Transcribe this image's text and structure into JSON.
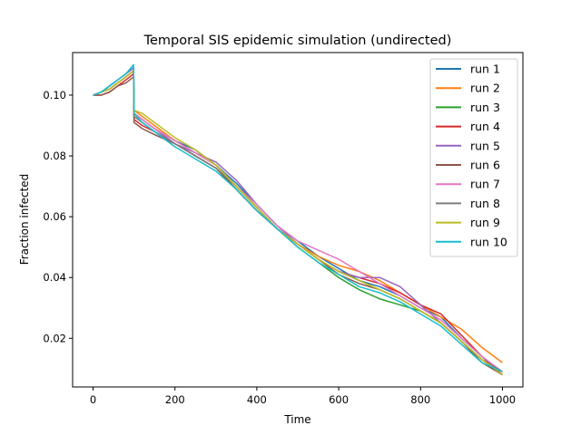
{
  "chart_data": {
    "type": "line",
    "title": "Temporal SIS epidemic simulation (undirected)",
    "xlabel": "Time",
    "ylabel": "Fraction infected",
    "xlim": [
      -50,
      1050
    ],
    "ylim": [
      0.004,
      0.114
    ],
    "xticks": [
      0,
      200,
      400,
      600,
      800,
      1000
    ],
    "yticks": [
      0.02,
      0.04,
      0.06,
      0.08,
      0.1
    ],
    "xtick_labels": [
      "0",
      "200",
      "400",
      "600",
      "800",
      "1000"
    ],
    "ytick_labels": [
      "0.02",
      "0.04",
      "0.06",
      "0.08",
      "0.10"
    ],
    "grid": false,
    "legend_position": "top-right",
    "x": [
      0,
      20,
      40,
      60,
      80,
      99,
      100,
      120,
      150,
      200,
      250,
      300,
      350,
      400,
      450,
      500,
      550,
      600,
      650,
      700,
      750,
      800,
      850,
      900,
      950,
      1000
    ],
    "series": [
      {
        "name": "run 1",
        "color": "#1f77b4",
        "values": [
          0.1,
          0.101,
          0.103,
          0.105,
          0.107,
          0.109,
          0.094,
          0.092,
          0.089,
          0.085,
          0.082,
          0.077,
          0.071,
          0.064,
          0.057,
          0.052,
          0.047,
          0.043,
          0.039,
          0.037,
          0.034,
          0.03,
          0.027,
          0.02,
          0.014,
          0.009
        ]
      },
      {
        "name": "run 2",
        "color": "#ff7f0e",
        "values": [
          0.1,
          0.101,
          0.102,
          0.104,
          0.106,
          0.108,
          0.095,
          0.093,
          0.09,
          0.085,
          0.081,
          0.077,
          0.07,
          0.063,
          0.056,
          0.051,
          0.047,
          0.044,
          0.042,
          0.039,
          0.035,
          0.031,
          0.027,
          0.023,
          0.017,
          0.012
        ]
      },
      {
        "name": "run 3",
        "color": "#2ca02c",
        "values": [
          0.1,
          0.101,
          0.102,
          0.104,
          0.106,
          0.108,
          0.093,
          0.091,
          0.088,
          0.084,
          0.08,
          0.076,
          0.07,
          0.063,
          0.056,
          0.05,
          0.045,
          0.04,
          0.036,
          0.033,
          0.031,
          0.029,
          0.025,
          0.019,
          0.013,
          0.008
        ]
      },
      {
        "name": "run 4",
        "color": "#d62728",
        "values": [
          0.1,
          0.1,
          0.101,
          0.103,
          0.105,
          0.107,
          0.092,
          0.09,
          0.088,
          0.084,
          0.08,
          0.076,
          0.069,
          0.062,
          0.056,
          0.051,
          0.046,
          0.042,
          0.04,
          0.038,
          0.035,
          0.031,
          0.028,
          0.021,
          0.014,
          0.008
        ]
      },
      {
        "name": "run 5",
        "color": "#9467bd",
        "values": [
          0.1,
          0.101,
          0.103,
          0.105,
          0.107,
          0.109,
          0.094,
          0.092,
          0.089,
          0.084,
          0.081,
          0.078,
          0.072,
          0.064,
          0.057,
          0.051,
          0.046,
          0.042,
          0.04,
          0.04,
          0.037,
          0.031,
          0.025,
          0.019,
          0.013,
          0.009
        ]
      },
      {
        "name": "run 6",
        "color": "#8c564b",
        "values": [
          0.1,
          0.1,
          0.101,
          0.103,
          0.104,
          0.106,
          0.091,
          0.089,
          0.087,
          0.084,
          0.08,
          0.076,
          0.069,
          0.062,
          0.056,
          0.051,
          0.046,
          0.041,
          0.038,
          0.036,
          0.033,
          0.029,
          0.025,
          0.019,
          0.012,
          0.008
        ]
      },
      {
        "name": "run 7",
        "color": "#e377c2",
        "values": [
          0.1,
          0.101,
          0.102,
          0.104,
          0.106,
          0.108,
          0.094,
          0.092,
          0.089,
          0.085,
          0.081,
          0.077,
          0.07,
          0.064,
          0.057,
          0.052,
          0.049,
          0.046,
          0.042,
          0.038,
          0.034,
          0.03,
          0.026,
          0.02,
          0.014,
          0.009
        ]
      },
      {
        "name": "run 8",
        "color": "#7f7f7f",
        "values": [
          0.1,
          0.101,
          0.102,
          0.104,
          0.106,
          0.108,
          0.093,
          0.091,
          0.088,
          0.084,
          0.08,
          0.076,
          0.07,
          0.063,
          0.056,
          0.051,
          0.046,
          0.042,
          0.039,
          0.036,
          0.033,
          0.029,
          0.025,
          0.019,
          0.013,
          0.009
        ]
      },
      {
        "name": "run 9",
        "color": "#bcbd22",
        "values": [
          0.1,
          0.101,
          0.102,
          0.104,
          0.106,
          0.108,
          0.095,
          0.094,
          0.091,
          0.086,
          0.082,
          0.077,
          0.07,
          0.063,
          0.056,
          0.051,
          0.046,
          0.042,
          0.039,
          0.036,
          0.033,
          0.029,
          0.025,
          0.019,
          0.013,
          0.008
        ]
      },
      {
        "name": "run 10",
        "color": "#17becf",
        "values": [
          0.1,
          0.101,
          0.103,
          0.105,
          0.107,
          0.11,
          0.094,
          0.091,
          0.088,
          0.083,
          0.079,
          0.075,
          0.069,
          0.062,
          0.056,
          0.05,
          0.045,
          0.041,
          0.037,
          0.035,
          0.032,
          0.028,
          0.024,
          0.018,
          0.012,
          0.009
        ]
      }
    ]
  }
}
